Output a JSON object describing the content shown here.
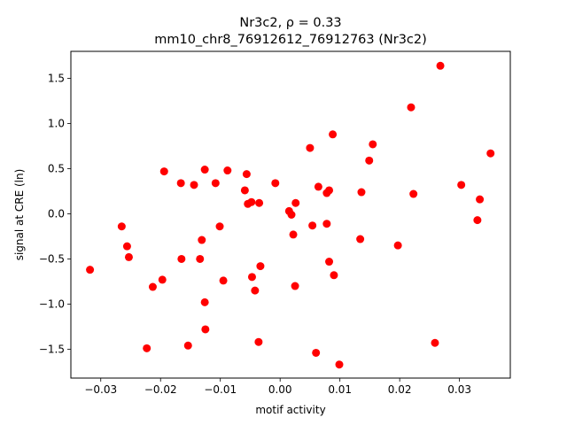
{
  "chart_data": {
    "type": "scatter",
    "title_line1": "Nr3c2, ρ = 0.33",
    "title_line2": "mm10_chr8_76912612_76912763 (Nr3c2)",
    "xlabel": "motif activity",
    "ylabel": "signal at CRE (ln)",
    "xlim": [
      -0.035,
      0.0385
    ],
    "ylim": [
      -1.82,
      1.8
    ],
    "xticks": [
      -0.03,
      -0.02,
      -0.01,
      0.0,
      0.01,
      0.02,
      0.03
    ],
    "xtick_labels": [
      "−0.03",
      "−0.02",
      "−0.01",
      "0.00",
      "0.01",
      "0.02",
      "0.03"
    ],
    "yticks": [
      -1.5,
      -1.0,
      -0.5,
      0.0,
      0.5,
      1.0,
      1.5
    ],
    "ytick_labels": [
      "−1.5",
      "−1.0",
      "−0.5",
      "0.0",
      "0.5",
      "1.0",
      "1.5"
    ],
    "grid": false,
    "marker_color": "#ff0000",
    "points": [
      {
        "x": -0.0318,
        "y": -0.62
      },
      {
        "x": -0.0265,
        "y": -0.14
      },
      {
        "x": -0.0256,
        "y": -0.36
      },
      {
        "x": -0.0253,
        "y": -0.48
      },
      {
        "x": -0.0223,
        "y": -1.49
      },
      {
        "x": -0.0213,
        "y": -0.81
      },
      {
        "x": -0.0197,
        "y": -0.73
      },
      {
        "x": -0.0194,
        "y": 0.47
      },
      {
        "x": -0.0166,
        "y": 0.34
      },
      {
        "x": -0.0165,
        "y": -0.5
      },
      {
        "x": -0.0154,
        "y": -1.46
      },
      {
        "x": -0.0144,
        "y": 0.32
      },
      {
        "x": -0.0134,
        "y": -0.5
      },
      {
        "x": -0.0131,
        "y": -0.29
      },
      {
        "x": -0.0126,
        "y": 0.49
      },
      {
        "x": -0.0126,
        "y": -0.98
      },
      {
        "x": -0.0125,
        "y": -1.28
      },
      {
        "x": -0.0108,
        "y": 0.34
      },
      {
        "x": -0.0101,
        "y": -0.14
      },
      {
        "x": -0.0095,
        "y": -0.74
      },
      {
        "x": -0.0088,
        "y": 0.48
      },
      {
        "x": -0.0059,
        "y": 0.26
      },
      {
        "x": -0.0056,
        "y": 0.44
      },
      {
        "x": -0.0054,
        "y": 0.11
      },
      {
        "x": -0.0048,
        "y": 0.13
      },
      {
        "x": -0.0047,
        "y": -0.7
      },
      {
        "x": -0.0042,
        "y": -0.85
      },
      {
        "x": -0.0036,
        "y": -1.42
      },
      {
        "x": -0.0035,
        "y": 0.12
      },
      {
        "x": -0.0033,
        "y": -0.58
      },
      {
        "x": -0.0008,
        "y": 0.34
      },
      {
        "x": 0.0015,
        "y": 0.03
      },
      {
        "x": 0.0019,
        "y": -0.01
      },
      {
        "x": 0.0022,
        "y": -0.23
      },
      {
        "x": 0.0025,
        "y": -0.8
      },
      {
        "x": 0.0026,
        "y": 0.12
      },
      {
        "x": 0.005,
        "y": 0.73
      },
      {
        "x": 0.0054,
        "y": -0.13
      },
      {
        "x": 0.006,
        "y": -1.54
      },
      {
        "x": 0.0064,
        "y": 0.3
      },
      {
        "x": 0.0078,
        "y": -0.11
      },
      {
        "x": 0.0078,
        "y": 0.23
      },
      {
        "x": 0.0082,
        "y": 0.26
      },
      {
        "x": 0.0082,
        "y": -0.53
      },
      {
        "x": 0.0088,
        "y": 0.88
      },
      {
        "x": 0.009,
        "y": -0.68
      },
      {
        "x": 0.0099,
        "y": -1.67
      },
      {
        "x": 0.0134,
        "y": -0.28
      },
      {
        "x": 0.0136,
        "y": 0.24
      },
      {
        "x": 0.0149,
        "y": 0.59
      },
      {
        "x": 0.0155,
        "y": 0.77
      },
      {
        "x": 0.0197,
        "y": -0.35
      },
      {
        "x": 0.0219,
        "y": 1.18
      },
      {
        "x": 0.0223,
        "y": 0.22
      },
      {
        "x": 0.0259,
        "y": -1.43
      },
      {
        "x": 0.0268,
        "y": 1.64
      },
      {
        "x": 0.0303,
        "y": 0.32
      },
      {
        "x": 0.033,
        "y": -0.07
      },
      {
        "x": 0.0334,
        "y": 0.16
      },
      {
        "x": 0.0352,
        "y": 0.67
      }
    ]
  }
}
